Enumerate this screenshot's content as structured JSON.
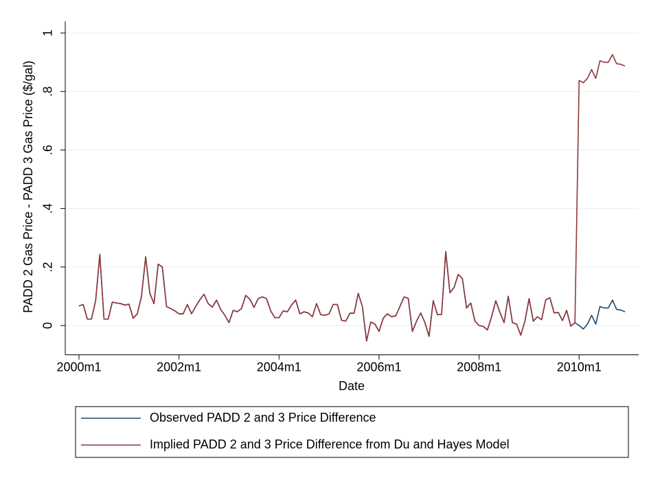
{
  "chart_data": {
    "type": "line",
    "x_label": "Date",
    "y_label": "PADD 2 Gas Price - PADD 3 Gas Price  ($/gal)",
    "categories": [
      "2000m1",
      null,
      null,
      null,
      null,
      null,
      null,
      null,
      null,
      null,
      null,
      null,
      null,
      null,
      null,
      null,
      null,
      null,
      null,
      null,
      null,
      null,
      null,
      null,
      "2002m1",
      null,
      null,
      null,
      null,
      null,
      null,
      null,
      null,
      null,
      null,
      null,
      null,
      null,
      null,
      null,
      null,
      null,
      null,
      null,
      null,
      null,
      null,
      null,
      "2004m1",
      null,
      null,
      null,
      null,
      null,
      null,
      null,
      null,
      null,
      null,
      null,
      null,
      null,
      null,
      null,
      null,
      null,
      null,
      null,
      null,
      null,
      null,
      null,
      "2006m1",
      null,
      null,
      null,
      null,
      null,
      null,
      null,
      null,
      null,
      null,
      null,
      null,
      null,
      null,
      null,
      null,
      null,
      null,
      null,
      null,
      null,
      null,
      null,
      "2008m1",
      null,
      null,
      null,
      null,
      null,
      null,
      null,
      null,
      null,
      null,
      null,
      null,
      null,
      null,
      null,
      null,
      null,
      null,
      null,
      null,
      null,
      null,
      null,
      "2010m1",
      null,
      null,
      null,
      null,
      null,
      null,
      null,
      null,
      null,
      null,
      null
    ],
    "series": [
      {
        "name": "Observed PADD 2 and 3 Price Difference",
        "color": "#1a476f",
        "values": [
          0.067,
          0.072,
          0.022,
          0.022,
          0.085,
          0.243,
          0.022,
          0.022,
          0.08,
          0.077,
          0.075,
          0.07,
          0.073,
          0.025,
          0.04,
          0.1,
          0.235,
          0.11,
          0.075,
          0.21,
          0.2,
          0.065,
          0.058,
          0.05,
          0.04,
          0.04,
          0.072,
          0.04,
          0.065,
          0.088,
          0.107,
          0.075,
          0.063,
          0.087,
          0.055,
          0.035,
          0.01,
          0.052,
          0.047,
          0.058,
          0.103,
          0.09,
          0.062,
          0.092,
          0.098,
          0.092,
          0.05,
          0.027,
          0.027,
          0.05,
          0.047,
          0.07,
          0.087,
          0.04,
          0.047,
          0.043,
          0.03,
          0.075,
          0.037,
          0.035,
          0.04,
          0.072,
          0.072,
          0.018,
          0.015,
          0.042,
          0.042,
          0.11,
          0.065,
          -0.053,
          0.012,
          0.005,
          -0.02,
          0.025,
          0.04,
          0.03,
          0.033,
          0.065,
          0.098,
          0.093,
          -0.02,
          0.015,
          0.043,
          0.01,
          -0.037,
          0.085,
          0.037,
          0.038,
          0.253,
          0.112,
          0.13,
          0.175,
          0.16,
          0.06,
          0.077,
          0.015,
          0,
          -0.003,
          -0.015,
          0.03,
          0.085,
          0.045,
          0.01,
          0.1,
          0.01,
          0.005,
          -0.033,
          0.015,
          0.092,
          0.015,
          0.03,
          0.02,
          0.088,
          0.095,
          0.043,
          0.045,
          0.017,
          0.052,
          -0.002,
          0.01,
          0,
          -0.012,
          0.005,
          0.035,
          0.005,
          0.065,
          0.06,
          0.06,
          0.087,
          0.055,
          0.053,
          0.047
        ]
      },
      {
        "name": "Implied PADD 2 and 3 Price Difference from Du and Hayes Model",
        "color": "#90353b",
        "values": [
          0.067,
          0.072,
          0.022,
          0.022,
          0.085,
          0.243,
          0.022,
          0.022,
          0.08,
          0.077,
          0.075,
          0.07,
          0.073,
          0.025,
          0.04,
          0.1,
          0.235,
          0.11,
          0.075,
          0.21,
          0.2,
          0.065,
          0.058,
          0.05,
          0.04,
          0.04,
          0.072,
          0.04,
          0.065,
          0.088,
          0.107,
          0.075,
          0.063,
          0.087,
          0.055,
          0.035,
          0.01,
          0.052,
          0.047,
          0.058,
          0.103,
          0.09,
          0.062,
          0.092,
          0.098,
          0.092,
          0.05,
          0.027,
          0.027,
          0.05,
          0.047,
          0.07,
          0.087,
          0.04,
          0.047,
          0.043,
          0.03,
          0.075,
          0.037,
          0.035,
          0.04,
          0.072,
          0.072,
          0.018,
          0.015,
          0.042,
          0.042,
          0.11,
          0.065,
          -0.053,
          0.012,
          0.005,
          -0.02,
          0.025,
          0.04,
          0.03,
          0.033,
          0.065,
          0.098,
          0.093,
          -0.02,
          0.015,
          0.043,
          0.01,
          -0.037,
          0.085,
          0.037,
          0.038,
          0.253,
          0.112,
          0.13,
          0.175,
          0.16,
          0.06,
          0.077,
          0.015,
          0,
          -0.003,
          -0.015,
          0.03,
          0.085,
          0.045,
          0.01,
          0.1,
          0.01,
          0.005,
          -0.033,
          0.015,
          0.092,
          0.015,
          0.03,
          0.02,
          0.088,
          0.095,
          0.043,
          0.045,
          0.017,
          0.052,
          -0.002,
          0.01,
          0.838,
          0.83,
          0.845,
          0.875,
          0.845,
          0.905,
          0.9,
          0.9,
          0.926,
          0.895,
          0.893,
          0.887
        ]
      }
    ],
    "ylim": [
      -0.1,
      1.04
    ],
    "yticks": [
      0,
      {
        "value": 0.2,
        "label": ".2"
      },
      {
        "value": 0.4,
        "label": ".4"
      },
      {
        "value": 0.6,
        "label": ".6"
      },
      {
        "value": 0.8,
        "label": ".8"
      },
      1
    ],
    "grid": true
  }
}
